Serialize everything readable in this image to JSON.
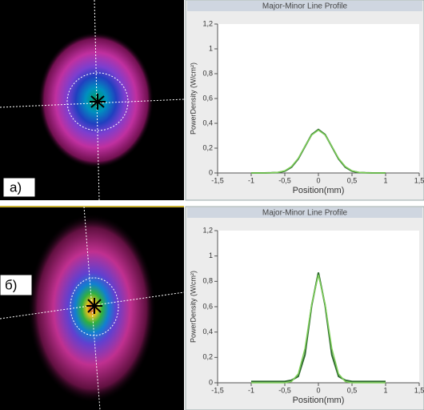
{
  "panels": [
    {
      "label": "a)"
    },
    {
      "label": "б)"
    }
  ],
  "chart_data": [
    {
      "type": "line",
      "title": "Major-Minor Line Profile",
      "x_label": "Position(mm)",
      "y_label": "PowerDensity (W/cm²)",
      "x": [
        -1,
        -0.9,
        -0.8,
        -0.7,
        -0.6,
        -0.5,
        -0.4,
        -0.3,
        -0.2,
        -0.1,
        0,
        0.1,
        0.2,
        0.3,
        0.4,
        0.5,
        0.6,
        0.7,
        0.8,
        0.9,
        1
      ],
      "series": [
        {
          "color": "#2e6b2e",
          "values": [
            0,
            0,
            0,
            0.001,
            0.004,
            0.015,
            0.047,
            0.113,
            0.212,
            0.309,
            0.35,
            0.309,
            0.212,
            0.113,
            0.047,
            0.015,
            0.004,
            0.001,
            0,
            0,
            0
          ]
        },
        {
          "color": "#7fcf5a",
          "values": [
            0,
            0,
            0,
            0.002,
            0.006,
            0.018,
            0.052,
            0.118,
            0.215,
            0.305,
            0.345,
            0.305,
            0.215,
            0.118,
            0.052,
            0.018,
            0.006,
            0.002,
            0,
            0,
            0
          ]
        }
      ],
      "xlim": [
        -1.5,
        1.5
      ],
      "xticks": [
        {
          "value": -1.5,
          "label": "-1,5"
        },
        -1,
        {
          "value": -0.5,
          "label": "-0,5"
        },
        0,
        {
          "value": 0.5,
          "label": "0,5"
        },
        1,
        {
          "value": 1.5,
          "label": "1,5"
        }
      ],
      "ylim": [
        0,
        1.2
      ],
      "yticks": [
        0,
        {
          "value": 0.2,
          "label": "0,2"
        },
        {
          "value": 0.4,
          "label": "0,4"
        },
        {
          "value": 0.6,
          "label": "0,6"
        },
        {
          "value": 0.8,
          "label": "0,8"
        },
        1,
        {
          "value": 1.2,
          "label": "1,2"
        }
      ]
    },
    {
      "type": "line",
      "title": "Major-Minor Line Profile",
      "x_label": "Position(mm)",
      "y_label": "PowerDensity (W/cm²)",
      "x": [
        -1,
        -0.9,
        -0.8,
        -0.7,
        -0.6,
        -0.5,
        -0.4,
        -0.3,
        -0.2,
        -0.1,
        0,
        0.1,
        0.2,
        0.3,
        0.4,
        0.5,
        0.6,
        0.7,
        0.8,
        0.9,
        1
      ],
      "series": [
        {
          "color": "#2e6b2e",
          "values": [
            0.01,
            0.01,
            0.01,
            0.01,
            0.01,
            0.01,
            0.02,
            0.05,
            0.22,
            0.61,
            0.87,
            0.61,
            0.22,
            0.05,
            0.02,
            0.01,
            0.01,
            0.01,
            0.01,
            0.01,
            0.01
          ]
        },
        {
          "color": "#7fcf5a",
          "values": [
            0,
            0,
            0,
            0,
            0,
            0,
            0.01,
            0.07,
            0.27,
            0.62,
            0.85,
            0.62,
            0.27,
            0.07,
            0.01,
            0,
            0,
            0,
            0,
            0,
            0
          ]
        }
      ],
      "xlim": [
        -1.5,
        1.5
      ],
      "xticks": [
        {
          "value": -1.5,
          "label": "-1,5"
        },
        -1,
        {
          "value": -0.5,
          "label": "-0,5"
        },
        0,
        {
          "value": 0.5,
          "label": "0,5"
        },
        1,
        {
          "value": 1.5,
          "label": "1,5"
        }
      ],
      "ylim": [
        0,
        1.2
      ],
      "yticks": [
        0,
        {
          "value": 0.2,
          "label": "0,2"
        },
        {
          "value": 0.4,
          "label": "0,4"
        },
        {
          "value": 0.6,
          "label": "0,6"
        },
        {
          "value": 0.8,
          "label": "0,8"
        },
        1,
        {
          "value": 1.2,
          "label": "1,2"
        }
      ]
    }
  ]
}
